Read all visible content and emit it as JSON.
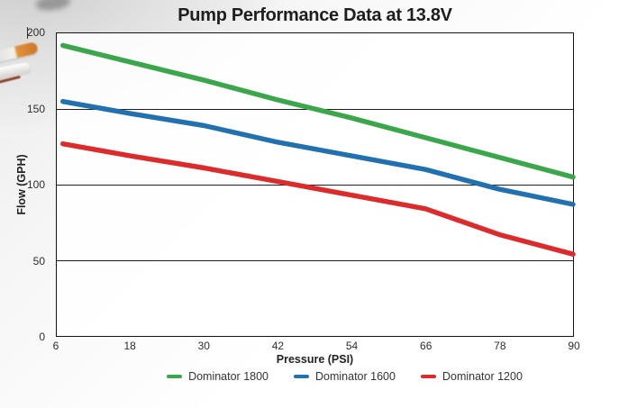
{
  "title": "Pump Performance Data at 13.8V",
  "colors": {
    "series_green": "#3aa74a",
    "series_blue": "#2171b0",
    "series_red": "#dd2b2b",
    "grid": "#1f1f1f",
    "axis_text": "#2e2e2e",
    "title_text": "#1e1e1e"
  },
  "decor": {
    "items": [
      "blurred-photo-fragment",
      "hose-fitting-orange-photo",
      "hose-fitting-white-photo",
      "red-wire-photo"
    ]
  },
  "chart_data": {
    "type": "line",
    "title": "Pump Performance Data at 13.8V",
    "xlabel": "Pressure (PSI)",
    "ylabel": "Flow (GPH)",
    "xlim": [
      6,
      90
    ],
    "ylim": [
      0,
      200
    ],
    "x_ticks": [
      6,
      18,
      30,
      42,
      54,
      66,
      78,
      90
    ],
    "y_ticks": [
      200,
      150,
      100,
      50,
      0
    ],
    "grid_y": [
      150,
      100,
      50
    ],
    "grid": "horizontal-only",
    "legend_position": "bottom",
    "x": [
      7,
      18,
      30,
      42,
      54,
      66,
      78,
      90
    ],
    "series": [
      {
        "name": "Dominator 1800",
        "color": "#3aa74a",
        "values": [
          192,
          181,
          169,
          156,
          144,
          131,
          118,
          105
        ]
      },
      {
        "name": "Dominator 1600",
        "color": "#2171b0",
        "values": [
          155,
          147,
          139,
          128,
          119,
          110,
          97,
          87
        ]
      },
      {
        "name": "Dominator 1200",
        "color": "#dd2b2b",
        "values": [
          127,
          119,
          111,
          102,
          93,
          84,
          67,
          54
        ]
      }
    ]
  }
}
